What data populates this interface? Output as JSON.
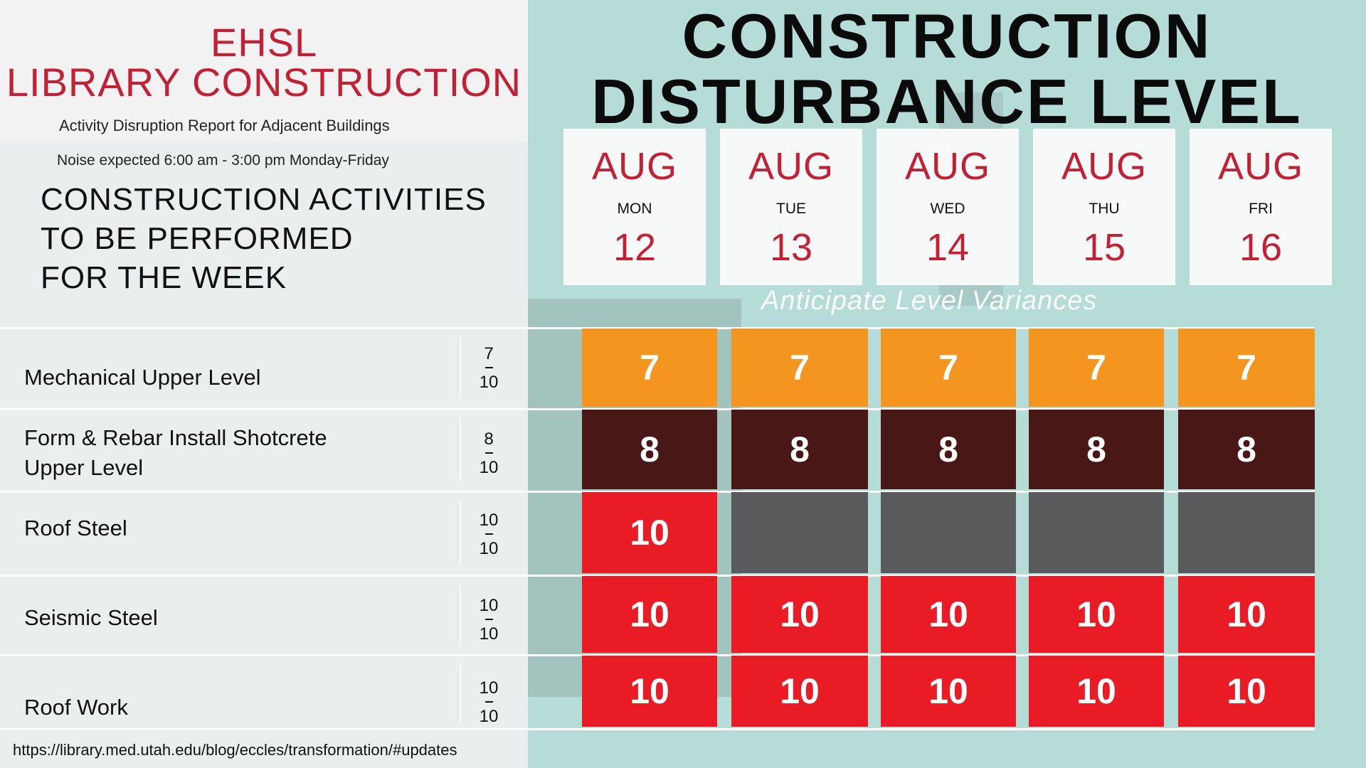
{
  "header": {
    "org_line1": "EHSL",
    "org_line2": "LIBRARY CONSTRUCTION",
    "subtitle": "Activity Disruption Report for Adjacent Buildings",
    "noise_note": "Noise expected 6:00 am - 3:00 pm Monday-Friday",
    "activities_title": [
      "CONSTRUCTION ACTIVITIES",
      "TO BE PERFORMED",
      "FOR THE WEEK"
    ],
    "main_title_line1": "CONSTRUCTION",
    "main_title_line2": "DISTURBANCE LEVEL",
    "variance_note": "Anticipate Level Variances"
  },
  "days": [
    {
      "month": "AUG",
      "day": "MON",
      "date": "12"
    },
    {
      "month": "AUG",
      "day": "TUE",
      "date": "13"
    },
    {
      "month": "AUG",
      "day": "WED",
      "date": "14"
    },
    {
      "month": "AUG",
      "day": "THU",
      "date": "15"
    },
    {
      "month": "AUG",
      "day": "FRI",
      "date": "16"
    }
  ],
  "activities": [
    {
      "label": [
        "Mechanical Upper Level"
      ],
      "level_num": "7",
      "level_den": "10",
      "color": "#f3951f",
      "values": [
        "7",
        "7",
        "7",
        "7",
        "7"
      ]
    },
    {
      "label": [
        "Form & Rebar Install Shotcrete",
        "Upper Level"
      ],
      "level_num": "8",
      "level_den": "10",
      "color": "#4a1717",
      "values": [
        "8",
        "8",
        "8",
        "8",
        "8"
      ]
    },
    {
      "label": [
        "Roof Steel"
      ],
      "level_num": "10",
      "level_den": "10",
      "color": "#e91c25",
      "values": [
        "10",
        "",
        "",
        "",
        ""
      ]
    },
    {
      "label": [
        "Seismic Steel"
      ],
      "level_num": "10",
      "level_den": "10",
      "color": "#e91c25",
      "values": [
        "10",
        "10",
        "10",
        "10",
        "10"
      ]
    },
    {
      "label": [
        "Roof Work"
      ],
      "level_num": "10",
      "level_den": "10",
      "color": "#e91c25",
      "values": [
        "10",
        "10",
        "10",
        "10",
        "10"
      ]
    }
  ],
  "footer": {
    "url": "https://library.med.utah.edu/blog/eccles/transformation/#updates"
  },
  "colors": {
    "accent_red": "#c22034",
    "inactive_gray": "#5a5a5d",
    "background_teal": "#b6dcd8"
  }
}
